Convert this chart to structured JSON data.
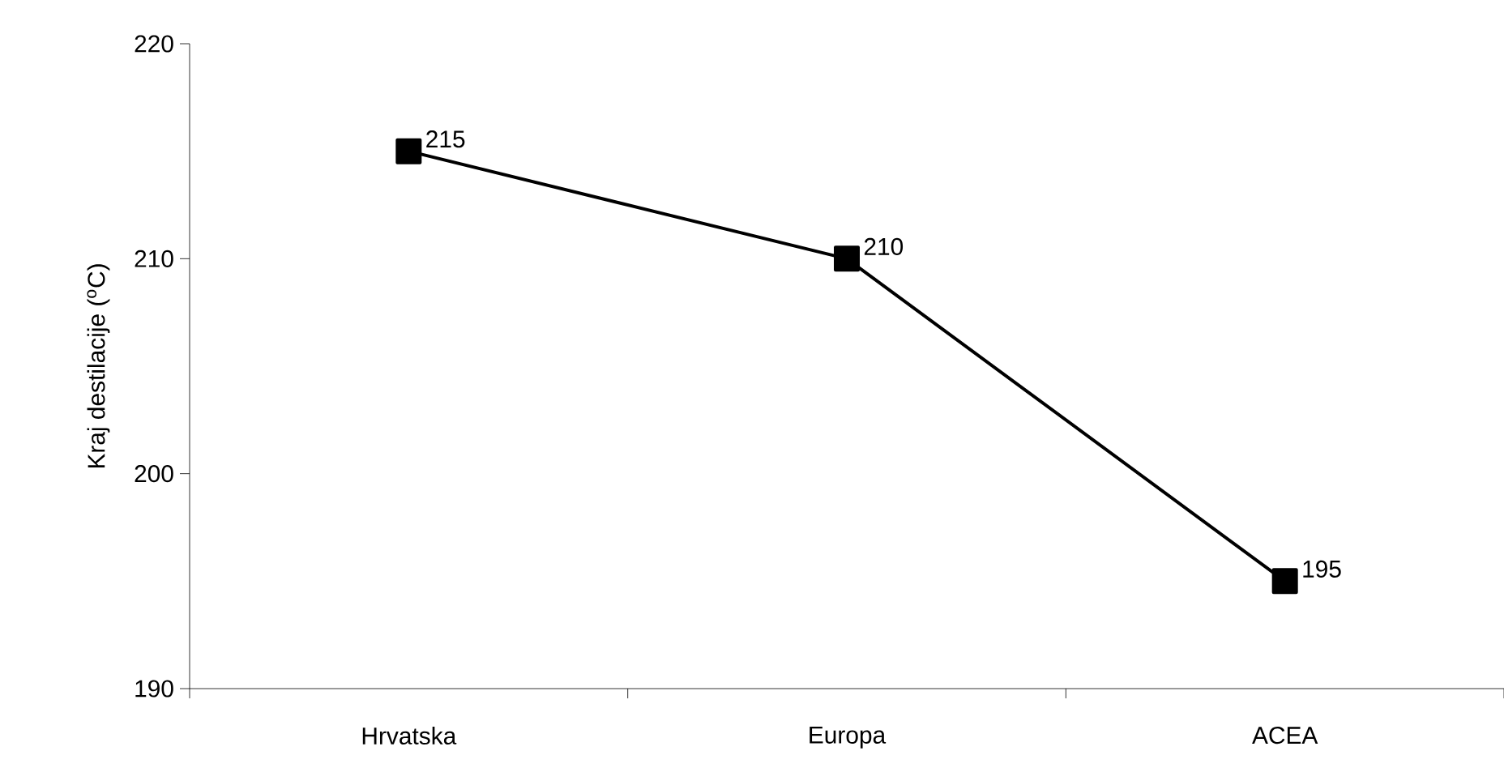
{
  "chart_data": {
    "type": "line",
    "ylabel": "Kraj destilacije ($^{o}$C)",
    "categories": [
      "Hrvatska",
      "Europa",
      "ACEA"
    ],
    "series": [
      {
        "color": "#000000",
        "values": [
          215,
          210,
          195
        ]
      }
    ],
    "ylim": [
      190,
      220
    ],
    "yticks": [
      190,
      200,
      210,
      220
    ],
    "marker": "square",
    "line_style": "solid",
    "data_labels": true,
    "grid": false,
    "legend": false
  }
}
